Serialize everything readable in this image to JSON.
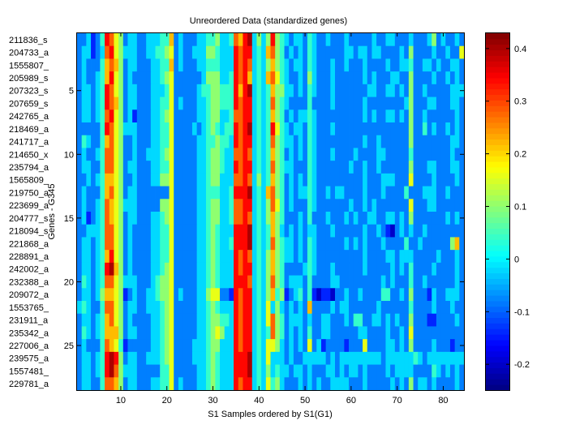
{
  "chart_data": {
    "type": "heatmap",
    "title": "Unreordered Data (standardized genes)",
    "xlabel": "S1 Samples ordered by S1(G1)",
    "ylabel": "Genes - G345",
    "colormap": "jet",
    "clim": [
      -0.249,
      0.429
    ],
    "xlim": [
      0.5,
      84.5
    ],
    "ylim": [
      0.5,
      28.5
    ],
    "x_ticks": [
      10,
      20,
      30,
      40,
      50,
      60,
      70,
      80
    ],
    "y_ticks": [
      5,
      10,
      15,
      20,
      25
    ],
    "colorbar_ticks": [
      0.4,
      0.3,
      0.2,
      0.1,
      0,
      -0.1,
      -0.2
    ],
    "colorbar_tick_labels": [
      "0.4",
      "0.3",
      "0.2",
      "0.1",
      "0",
      "-0.1",
      "-0.2"
    ],
    "row_labels": [
      "211836_s",
      "204733_a",
      "1555807_",
      "205989_s",
      "207323_s",
      "207659_s",
      "242765_a",
      "218469_a",
      "241717_a",
      "214650_x",
      "235794_a",
      "1565809_",
      "219750_a",
      "223699_a",
      "204777_s",
      "218094_s",
      "221868_a",
      "228891_a",
      "242002_a",
      "232388_a",
      "209072_a",
      "1553765_",
      "231911_a",
      "235342_a",
      "227006_a",
      "239575_a",
      "1557481_",
      "229781_a"
    ],
    "value_encoding": "each character L (0-9, a=10) encodes value -0.2 + 0.06*L",
    "rows": [
      "223124986523322333447232223344533487 9a353595432332432232223222223223322232223523 2232",
      "2331238965333223344562322333554333989934378542323243222222332332332222325222232232 26",
      "232224787523322233447232223344433398983435754323324322232232223222232233422332322332",
      "232234796523222233456222222355533498973437864322325322232222223232223322522223223232",
      "233234986523322233346222223445544497 9a343475533232432223222222233223323252232222 2333",
      "233234987523322233446232223345544498993434854322224222232222223222222223522233222332",
      "233234896523122233456222223345533488993434754232334322222222223232233232522322222232",
      "222224986533322233446222232345434498 9a343496432332432223222222222222222252242322 3232",
      "243224786522322233446222223344544398993434854332324322222222223223222222522222222332",
      "232234886522322333456222223345543388983434754232324322232222322223322222422222222322",
      "233224886523322233446222223345543398993434854332224322222223223223222222522233222332",
      "223234776522322233556222223345533388983534754232324322222222223222333222622223222232",
      "232224786523322222226222223344433499 9a343785423233432232332222322232222422233322322",
      "232234876533322222556222223345533488993435864232224322222223223232222222622233222222",
      "231234876523322233456222223345533488983435754222324222322232322332233232522222223232",
      "223334886523222233446222223345433399 9a343475323232332223222222322321023232232222 2222",
      "233234886523222233446222223345433499 9a343485433232432222223232322232222422322222257",
      "233234796523222233446222223345433398983435754332324322222222223222233233322222322232",
      "2332349a7523222233456222223345433398993435754222234322232222223222223232422223222232",
      "243234886533322234556222223345433399983435854233324222233222222222323222422322222232",
      "233235776512322334556232223356622198993435745123424101102232232222442232522213223332",
      "343224886523322333456222223345433398993436353232327222232332222223222222422223222322",
      "233234786523222233456222223345544398993436854233323223322232442233232322522211222232",
      "243234777523322233456222223345653398993434854232324223322222233222232232622222222222",
      "232224876412222233456222233345533398993436653232326231222212226222233232522223222122",
      "2332349a9523322333456222233345433399 9a343633323223333323233333333323333334323333 3333",
      "2332349a8533322222446222223345433399 9a343534332332322233232332322223233332222432 3232",
      "233224887523322233446232223345433398993436453222323232233332223222223232523323222232"
    ]
  }
}
